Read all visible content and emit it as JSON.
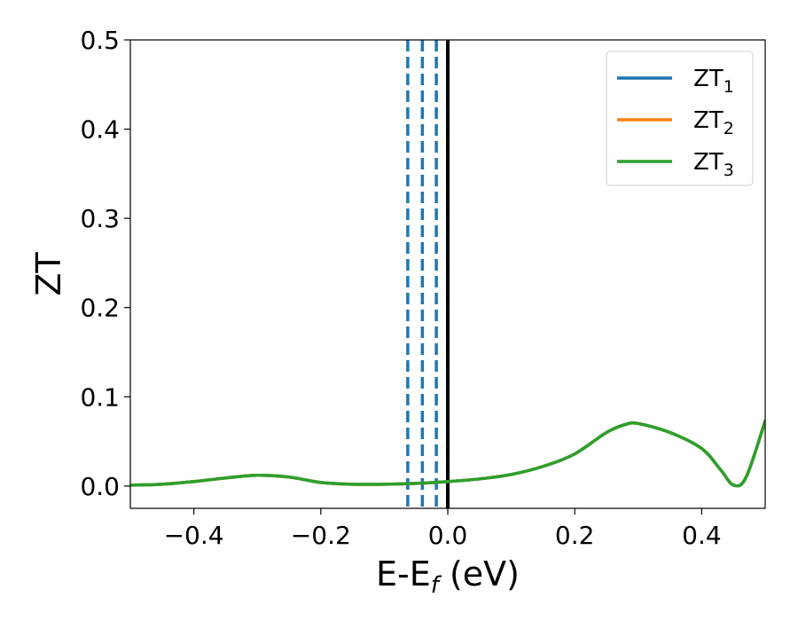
{
  "chart_data": {
    "type": "line",
    "title": "",
    "xlabel": "E-E",
    "xlabel_sub": "f",
    "xlabel_unit": " (eV)",
    "ylabel": "ZT",
    "xlim": [
      -0.5,
      0.5
    ],
    "ylim": [
      -0.025,
      0.5
    ],
    "xticks": [
      -0.4,
      -0.2,
      0.0,
      0.2,
      0.4
    ],
    "xtick_labels": [
      "−0.4",
      "−0.2",
      "0.0",
      "0.2",
      "0.4"
    ],
    "yticks": [
      0.0,
      0.1,
      0.2,
      0.3,
      0.4,
      0.5
    ],
    "ytick_labels": [
      "0.0",
      "0.1",
      "0.2",
      "0.3",
      "0.4",
      "0.5"
    ],
    "legend_position": "top-right",
    "series": [
      {
        "name": "ZT",
        "name_sub": "1",
        "color": "#1f77b4",
        "x": [
          -0.5,
          -0.45,
          -0.4,
          -0.35,
          -0.3,
          -0.25,
          -0.2,
          -0.15,
          -0.1,
          -0.05,
          0.0,
          0.05,
          0.1,
          0.15,
          0.2,
          0.25,
          0.28,
          0.3,
          0.35,
          0.4,
          0.43,
          0.45,
          0.47,
          0.5
        ],
        "y": [
          0.001,
          0.002,
          0.005,
          0.009,
          0.012,
          0.01,
          0.004,
          0.002,
          0.002,
          0.003,
          0.005,
          0.008,
          0.013,
          0.022,
          0.036,
          0.06,
          0.069,
          0.07,
          0.06,
          0.042,
          0.018,
          0.001,
          0.01,
          0.073
        ]
      },
      {
        "name": "ZT",
        "name_sub": "2",
        "color": "#ff7f0e",
        "x": [
          -0.5,
          -0.45,
          -0.4,
          -0.35,
          -0.3,
          -0.25,
          -0.2,
          -0.15,
          -0.1,
          -0.05,
          0.0,
          0.05,
          0.1,
          0.15,
          0.2,
          0.25,
          0.28,
          0.3,
          0.35,
          0.4,
          0.43,
          0.45,
          0.47,
          0.5
        ],
        "y": [
          0.001,
          0.002,
          0.005,
          0.009,
          0.012,
          0.01,
          0.004,
          0.002,
          0.002,
          0.003,
          0.005,
          0.008,
          0.013,
          0.022,
          0.036,
          0.06,
          0.069,
          0.07,
          0.06,
          0.042,
          0.018,
          0.001,
          0.01,
          0.073
        ]
      },
      {
        "name": "ZT",
        "name_sub": "3",
        "color": "#2ca02c",
        "x": [
          -0.5,
          -0.45,
          -0.4,
          -0.35,
          -0.3,
          -0.25,
          -0.2,
          -0.15,
          -0.1,
          -0.05,
          0.0,
          0.05,
          0.1,
          0.15,
          0.2,
          0.25,
          0.28,
          0.3,
          0.35,
          0.4,
          0.43,
          0.45,
          0.47,
          0.5
        ],
        "y": [
          0.001,
          0.002,
          0.005,
          0.009,
          0.012,
          0.01,
          0.004,
          0.002,
          0.002,
          0.003,
          0.005,
          0.008,
          0.013,
          0.022,
          0.036,
          0.06,
          0.069,
          0.07,
          0.06,
          0.042,
          0.018,
          0.001,
          0.01,
          0.073
        ]
      }
    ],
    "vertical_lines": [
      {
        "x": -0.063,
        "style": "dashed",
        "color": "#1f77b4"
      },
      {
        "x": -0.04,
        "style": "dashed",
        "color": "#1f77b4"
      },
      {
        "x": -0.018,
        "style": "dashed",
        "color": "#1f77b4"
      },
      {
        "x": 0.0,
        "style": "solid",
        "color": "#000000"
      }
    ],
    "grid": false
  }
}
